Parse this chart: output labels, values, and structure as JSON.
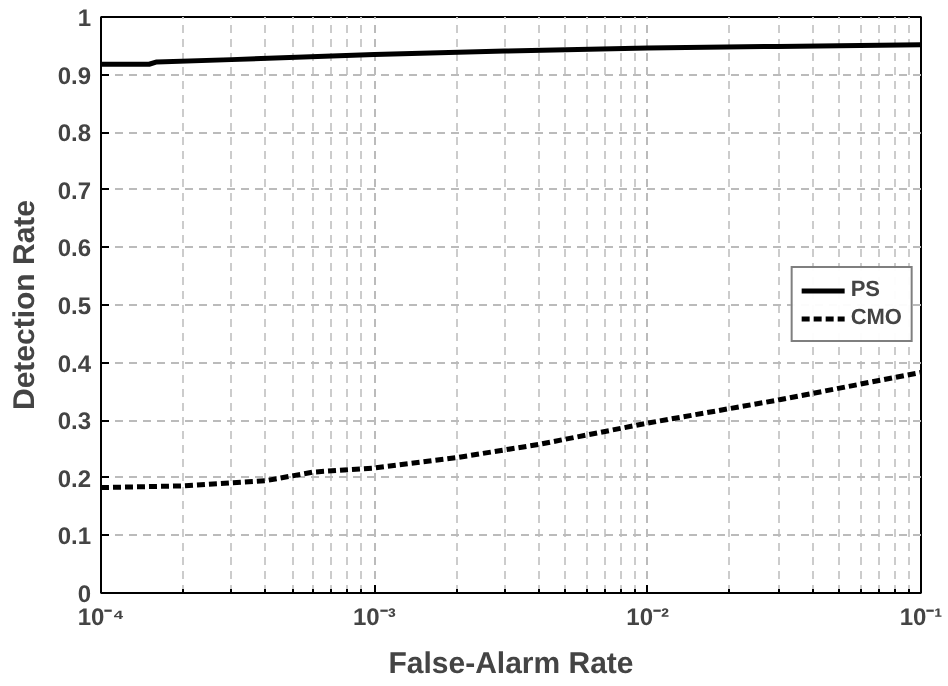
{
  "chart_data": {
    "type": "line",
    "xlabel": "False-Alarm Rate",
    "ylabel": "Detection Rate",
    "log": "x",
    "xlim": [
      0.0001,
      0.1
    ],
    "xticks": [
      {
        "value": 0.0001,
        "label": "10⁻⁴"
      },
      {
        "value": 0.001,
        "label": "10⁻³"
      },
      {
        "value": 0.01,
        "label": "10⁻²"
      },
      {
        "value": 0.1,
        "label": "10⁻¹"
      }
    ],
    "ylim": [
      0,
      1
    ],
    "yticks": [
      0,
      0.1,
      0.2,
      0.3,
      0.4,
      0.5,
      0.6,
      0.7,
      0.8,
      0.9,
      1
    ],
    "grid": true,
    "legend": "right",
    "series": [
      {
        "name": "PS",
        "color": "#000000",
        "line_style": "solid",
        "x": [
          0.0001,
          0.00015,
          0.00016,
          0.0003,
          0.001,
          0.003,
          0.01,
          0.03,
          0.1
        ],
        "values": [
          0.918,
          0.918,
          0.922,
          0.926,
          0.935,
          0.941,
          0.946,
          0.949,
          0.952
        ]
      },
      {
        "name": "CMO",
        "color": "#000000",
        "line_style": "dashed",
        "x": [
          0.0001,
          0.0002,
          0.0004,
          0.0006,
          0.001,
          0.002,
          0.004,
          0.01,
          0.03,
          0.1
        ],
        "values": [
          0.183,
          0.186,
          0.195,
          0.21,
          0.217,
          0.235,
          0.258,
          0.295,
          0.335,
          0.383
        ]
      }
    ]
  }
}
